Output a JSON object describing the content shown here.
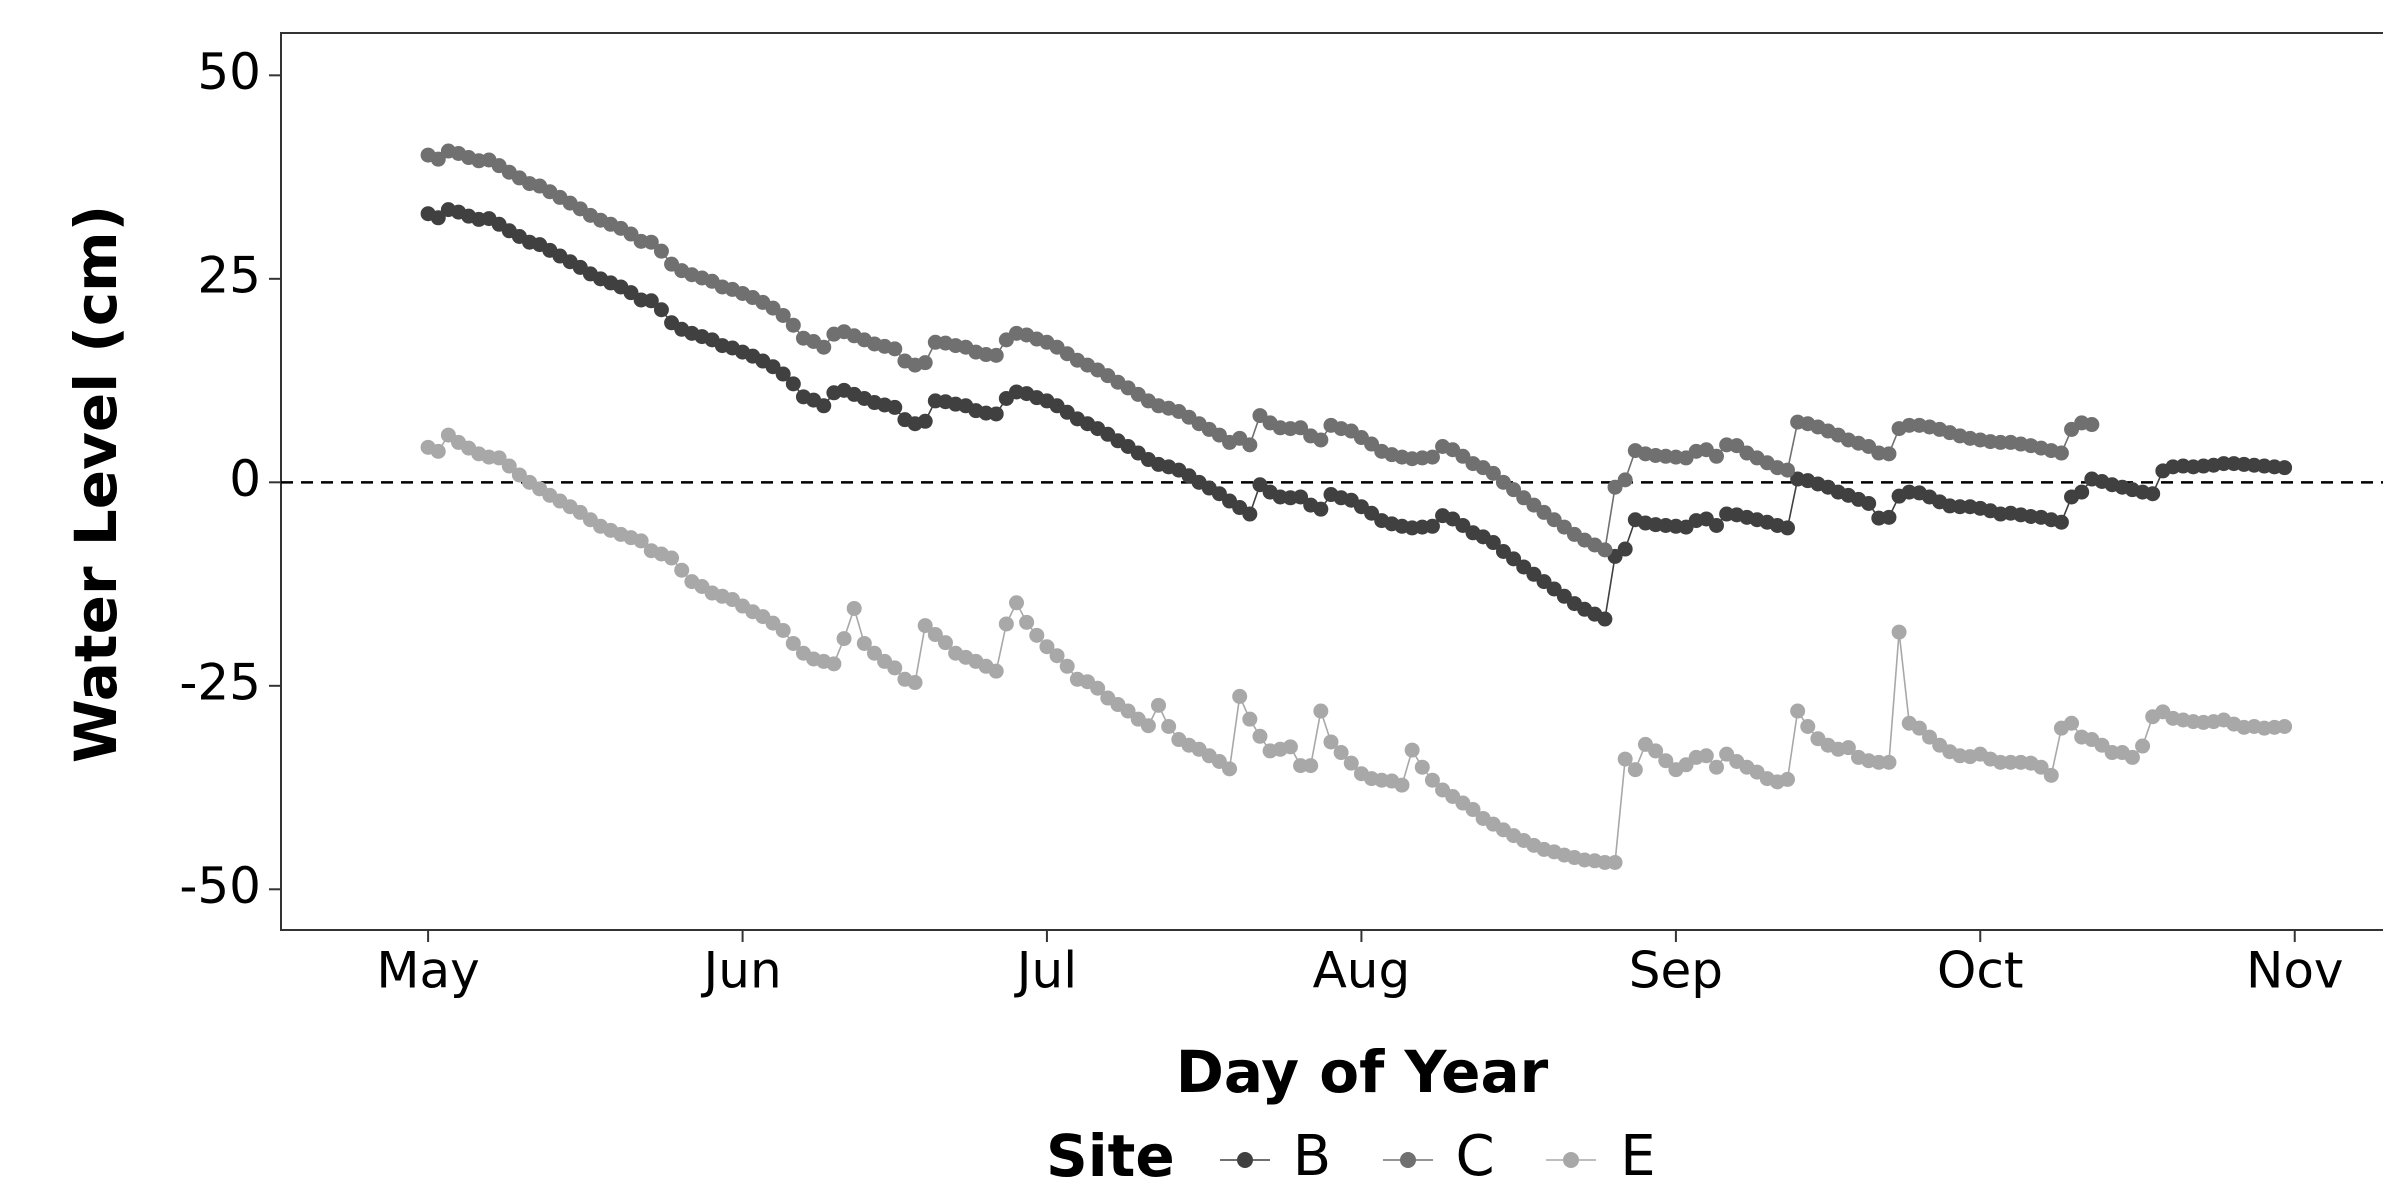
{
  "chart_data": {
    "type": "line",
    "x_title": "Day of Year",
    "y_title": "Water Level (cm)",
    "legend_title": "Site",
    "legend_position": "bottom",
    "grid": false,
    "hline": 0,
    "xlim": [
      106.5,
      313.7
    ],
    "ylim": [
      -55,
      55.2
    ],
    "xticks": [
      {
        "value": 121,
        "label": "May"
      },
      {
        "value": 152,
        "label": "Jun"
      },
      {
        "value": 182,
        "label": "Jul"
      },
      {
        "value": 213,
        "label": "Aug"
      },
      {
        "value": 244,
        "label": "Sep"
      },
      {
        "value": 274,
        "label": "Oct"
      },
      {
        "value": 305,
        "label": "Nov"
      }
    ],
    "yticks": [
      -50,
      -25,
      0,
      25,
      50
    ],
    "x": [
      121,
      122,
      123,
      124,
      125,
      126,
      127,
      128,
      129,
      130,
      131,
      132,
      133,
      134,
      135,
      136,
      137,
      138,
      139,
      140,
      141,
      142,
      143,
      144,
      145,
      146,
      147,
      148,
      149,
      150,
      151,
      152,
      153,
      154,
      155,
      156,
      157,
      158,
      159,
      160,
      161,
      162,
      163,
      164,
      165,
      166,
      167,
      168,
      169,
      170,
      171,
      172,
      173,
      174,
      175,
      176,
      177,
      178,
      179,
      180,
      181,
      182,
      183,
      184,
      185,
      186,
      187,
      188,
      189,
      190,
      191,
      192,
      193,
      194,
      195,
      196,
      197,
      198,
      199,
      200,
      201,
      202,
      203,
      204,
      205,
      206,
      207,
      208,
      209,
      210,
      211,
      212,
      213,
      214,
      215,
      216,
      217,
      218,
      219,
      220,
      221,
      222,
      223,
      224,
      225,
      226,
      227,
      228,
      229,
      230,
      231,
      232,
      233,
      234,
      235,
      236,
      237,
      238,
      239,
      240,
      241,
      242,
      243,
      244,
      245,
      246,
      247,
      248,
      249,
      250,
      251,
      252,
      253,
      254,
      255,
      256,
      257,
      258,
      259,
      260,
      261,
      262,
      263,
      264,
      265,
      266,
      267,
      268,
      269,
      270,
      271,
      272,
      273,
      274,
      275,
      276,
      277,
      278,
      279,
      280,
      281,
      282,
      283,
      284,
      285,
      286,
      287,
      288,
      289,
      290,
      291,
      292,
      293,
      294,
      295,
      296,
      297,
      298,
      299,
      300,
      301,
      302,
      303,
      304
    ],
    "series": [
      {
        "name": "B",
        "color": "#404040",
        "values": [
          33,
          32.5,
          33.5,
          33.2,
          32.7,
          32.3,
          32.4,
          31.7,
          30.9,
          30.2,
          29.5,
          29.2,
          28.5,
          27.8,
          27.1,
          26.4,
          25.6,
          25,
          24.5,
          24,
          23.3,
          22.4,
          22.3,
          21.2,
          19.6,
          18.8,
          18.3,
          17.9,
          17.5,
          16.8,
          16.5,
          16,
          15.5,
          14.9,
          14.2,
          13.3,
          12.1,
          10.5,
          10.1,
          9.4,
          11,
          11.3,
          10.8,
          10.3,
          9.8,
          9.5,
          9.2,
          7.7,
          7.2,
          7.5,
          10,
          9.9,
          9.6,
          9.4,
          8.8,
          8.5,
          8.4,
          10.3,
          11.1,
          10.9,
          10.4,
          10,
          9.4,
          8.6,
          7.8,
          7.2,
          6.6,
          5.9,
          5.1,
          4.4,
          3.6,
          2.8,
          2.2,
          1.9,
          1.5,
          0.8,
          0,
          -0.7,
          -1.4,
          -2.3,
          -3.1,
          -3.9,
          -0.3,
          -1.2,
          -1.8,
          -1.9,
          -1.8,
          -2.8,
          -3.3,
          -1.5,
          -1.9,
          -2.2,
          -3,
          -3.8,
          -4.7,
          -5.1,
          -5.4,
          -5.6,
          -5.5,
          -5.4,
          -4.1,
          -4.5,
          -5.3,
          -6.2,
          -6.7,
          -7.4,
          -8.5,
          -9.4,
          -10.4,
          -11.3,
          -12.2,
          -13.1,
          -14,
          -14.9,
          -15.6,
          -16.2,
          -16.8,
          -9.1,
          -8.2,
          -4.6,
          -5,
          -5.2,
          -5.3,
          -5.4,
          -5.5,
          -4.7,
          -4.5,
          -5.3,
          -3.9,
          -4,
          -4.3,
          -4.6,
          -4.9,
          -5.3,
          -5.6,
          0.4,
          0.2,
          -0.2,
          -0.6,
          -1.2,
          -1.6,
          -2.1,
          -2.6,
          -4.4,
          -4.3,
          -1.7,
          -1.2,
          -1.3,
          -1.8,
          -2.4,
          -2.9,
          -3,
          -3,
          -3.2,
          -3.5,
          -3.9,
          -3.8,
          -4,
          -4.2,
          -4.3,
          -4.6,
          -4.9,
          -1.8,
          -1.2,
          0.4,
          0.1,
          -0.3,
          -0.6,
          -0.9,
          -1.2,
          -1.4,
          1.4,
          1.9,
          2,
          1.9,
          2,
          2.1,
          2.3,
          2.3,
          2.2,
          2.1,
          2,
          1.9,
          1.8
        ]
      },
      {
        "name": "C",
        "color": "#707070",
        "values": [
          40.2,
          39.7,
          40.7,
          40.4,
          39.9,
          39.5,
          39.6,
          38.9,
          38.1,
          37.4,
          36.7,
          36.4,
          35.7,
          35,
          34.3,
          33.6,
          32.8,
          32.2,
          31.7,
          31.2,
          30.5,
          29.6,
          29.5,
          28.4,
          26.8,
          26,
          25.5,
          25.1,
          24.7,
          24,
          23.7,
          23.2,
          22.7,
          22.1,
          21.4,
          20.5,
          19.3,
          17.7,
          17.3,
          16.6,
          18.2,
          18.5,
          18,
          17.5,
          17,
          16.7,
          16.4,
          14.9,
          14.4,
          14.7,
          17.2,
          17.1,
          16.8,
          16.6,
          16,
          15.7,
          15.6,
          17.5,
          18.3,
          18.1,
          17.6,
          17.2,
          16.6,
          15.8,
          15,
          14.4,
          13.8,
          13.1,
          12.3,
          11.6,
          10.8,
          10,
          9.4,
          9.1,
          8.7,
          8,
          7.2,
          6.5,
          5.8,
          4.9,
          5.4,
          4.6,
          8.2,
          7.3,
          6.7,
          6.6,
          6.7,
          5.7,
          5.2,
          7,
          6.6,
          6.3,
          5.5,
          4.7,
          3.8,
          3.4,
          3.1,
          2.9,
          3,
          3.1,
          4.4,
          4,
          3.2,
          2.3,
          1.8,
          1.1,
          0,
          -0.9,
          -1.9,
          -2.8,
          -3.7,
          -4.6,
          -5.5,
          -6.4,
          -7.1,
          -7.7,
          -8.3,
          -0.6,
          0.3,
          3.9,
          3.5,
          3.3,
          3.2,
          3.1,
          3,
          3.8,
          4,
          3.2,
          4.6,
          4.5,
          3.6,
          3,
          2.4,
          1.8,
          1.5,
          7.4,
          7.2,
          6.8,
          6.3,
          5.8,
          5.2,
          4.8,
          4.4,
          3.6,
          3.5,
          6.6,
          7,
          7,
          6.8,
          6.5,
          6.1,
          5.7,
          5.4,
          5.2,
          5,
          4.9,
          4.9,
          4.7,
          4.5,
          4.2,
          3.9,
          3.6,
          6.5,
          7.3,
          7.1,
          null,
          null,
          null,
          null,
          null,
          null,
          null,
          null,
          null,
          null,
          null,
          null,
          null,
          null,
          null,
          null,
          null,
          null,
          null
        ]
      },
      {
        "name": "E",
        "color": "#a8a8a8",
        "values": [
          4.3,
          3.8,
          5.8,
          4.9,
          4.2,
          3.5,
          3.1,
          3,
          2,
          0.9,
          0,
          -0.8,
          -1.6,
          -2.3,
          -3,
          -3.7,
          -4.6,
          -5.4,
          -5.9,
          -6.4,
          -6.8,
          -7.2,
          -8.4,
          -8.8,
          -9.3,
          -10.8,
          -12.2,
          -12.8,
          -13.6,
          -14,
          -14.4,
          -15.2,
          -15.9,
          -16.5,
          -17.3,
          -18.2,
          -19.8,
          -21,
          -21.7,
          -22,
          -22.3,
          -19.2,
          -15.5,
          -19.8,
          -21,
          -22,
          -22.8,
          -24.2,
          -24.6,
          -17.6,
          -18.7,
          -19.7,
          -21,
          -21.5,
          -22,
          -22.6,
          -23.2,
          -17.4,
          -14.8,
          -17.2,
          -18.8,
          -20.2,
          -21.3,
          -22.6,
          -24.2,
          -24.5,
          -25.3,
          -26.5,
          -27.3,
          -28.1,
          -29.1,
          -29.9,
          -27.4,
          -30,
          -31.6,
          -32.3,
          -32.8,
          -33.6,
          -34.3,
          -35.2,
          -26.3,
          -29.1,
          -31.2,
          -33,
          -32.8,
          -32.5,
          -34.8,
          -34.8,
          -28.1,
          -31.9,
          -33.2,
          -34.5,
          -35.8,
          -36.4,
          -36.6,
          -36.7,
          -37.2,
          -32.9,
          -35,
          -36.6,
          -37.8,
          -38.6,
          -39.4,
          -40.2,
          -41.3,
          -42,
          -42.7,
          -43.4,
          -44,
          -44.6,
          -45.1,
          -45.4,
          -45.8,
          -46.1,
          -46.4,
          -46.5,
          -46.7,
          -46.7,
          -34,
          -35.3,
          -32.2,
          -33,
          -34.2,
          -35.3,
          -34.7,
          -33.8,
          -33.6,
          -35,
          -33.4,
          -34.3,
          -35,
          -35.6,
          -36.4,
          -36.8,
          -36.5,
          -28.1,
          -30,
          -31.5,
          -32.3,
          -32.8,
          -32.6,
          -33.8,
          -34.2,
          -34.4,
          -34.4,
          -18.4,
          -29.6,
          -30.2,
          -31.3,
          -32.3,
          -33.1,
          -33.6,
          -33.7,
          -33.4,
          -34,
          -34.4,
          -34.4,
          -34.4,
          -34.5,
          -35,
          -36,
          -30.2,
          -29.6,
          -31.3,
          -31.6,
          -32.3,
          -33.2,
          -33.2,
          -33.8,
          -32.4,
          -28.8,
          -28.2,
          -29,
          -29.2,
          -29.4,
          -29.5,
          -29.4,
          -29.2,
          -29.7,
          -30.1,
          -30,
          -30.2,
          -30.1,
          -30
        ]
      }
    ]
  }
}
